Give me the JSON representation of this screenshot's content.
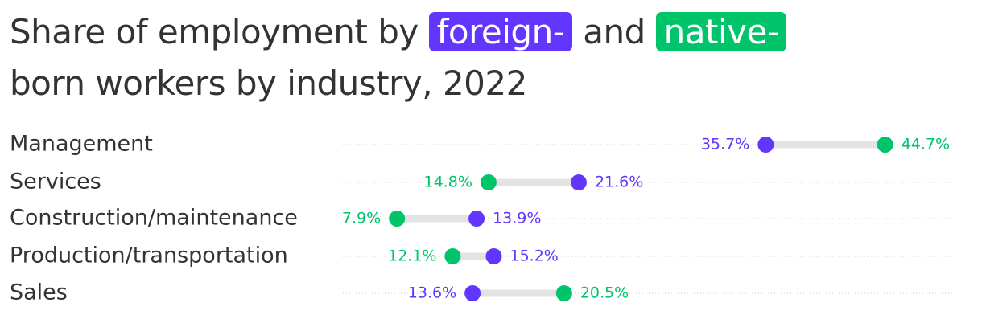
{
  "chart_data": {
    "type": "dumbbell",
    "title": [
      "Share of employment by",
      "and",
      "born workers by industry, 2022"
    ],
    "categories": [
      "Management",
      "Services",
      "Construction/maintenance",
      "Production/transportation",
      "Sales"
    ],
    "series": [
      {
        "name": "foreign-",
        "color": "#6236ff",
        "values": [
          35.7,
          21.6,
          13.9,
          15.2,
          13.6
        ],
        "value_labels": [
          "35.7%",
          "21.6%",
          "13.9%",
          "15.2%",
          "13.6%"
        ]
      },
      {
        "name": "native-",
        "color": "#00c46a",
        "values": [
          44.7,
          14.8,
          7.9,
          12.1,
          20.5
        ],
        "value_labels": [
          "44.7%",
          "14.8%",
          "7.9%",
          "12.1%",
          "20.5%"
        ]
      }
    ],
    "xlim": [
      0,
      50
    ]
  }
}
